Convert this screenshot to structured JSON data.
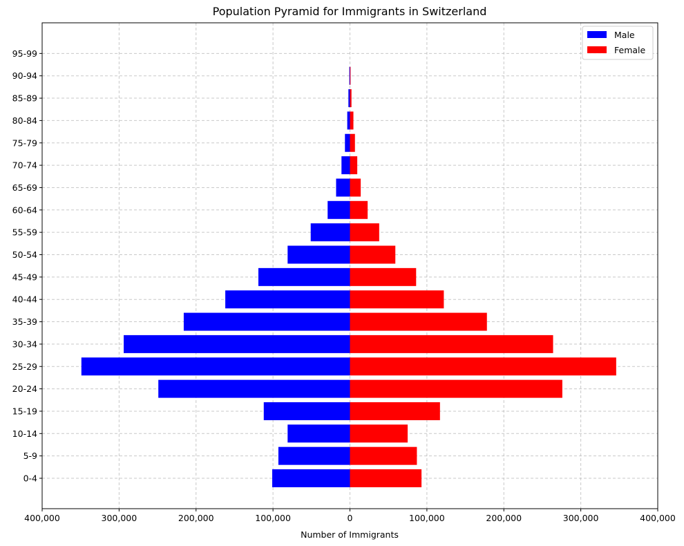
{
  "chart_data": {
    "type": "bar",
    "orientation": "horizontal",
    "title": "Population Pyramid for Immigrants in Switzerland",
    "xlabel": "Number of Immigrants",
    "ylabel": "",
    "xlim": [
      -400000,
      400000
    ],
    "x_ticks": [
      -400000,
      -300000,
      -200000,
      -100000,
      0,
      100000,
      200000,
      300000,
      400000
    ],
    "x_tick_labels": [
      "400,000",
      "300,000",
      "200,000",
      "100,000",
      "0",
      "100,000",
      "200,000",
      "300,000",
      "400,000"
    ],
    "grid": true,
    "legend_position": "top-right",
    "categories": [
      "0-4",
      "5-9",
      "10-14",
      "15-19",
      "20-24",
      "25-29",
      "30-34",
      "35-39",
      "40-44",
      "45-49",
      "50-54",
      "55-59",
      "60-64",
      "65-69",
      "70-74",
      "75-79",
      "80-84",
      "85-89",
      "90-94",
      "95-99"
    ],
    "series": [
      {
        "name": "Male",
        "color": "#0000ff",
        "values": [
          101000,
          93000,
          81000,
          112000,
          249000,
          349000,
          294000,
          216000,
          162000,
          119000,
          81000,
          51000,
          29000,
          18000,
          11000,
          6500,
          3500,
          2000,
          800,
          0
        ]
      },
      {
        "name": "Female",
        "color": "#ff0000",
        "values": [
          93000,
          87000,
          75000,
          117000,
          276000,
          346000,
          264000,
          178000,
          122000,
          86000,
          59000,
          38000,
          23000,
          14000,
          9500,
          6500,
          4500,
          2000,
          800,
          0
        ]
      }
    ]
  }
}
